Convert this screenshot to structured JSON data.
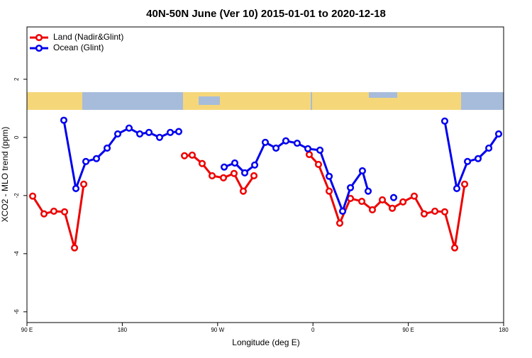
{
  "chart_data": {
    "type": "line",
    "title": "40N-50N June (Ver 10)   2015-01-01 to 2020-12-18",
    "x_label": "Longitude (deg E)",
    "y_label": "XCO2 - MLO trend (ppm)",
    "xlim": [
      90,
      540
    ],
    "xticks": [
      {
        "value": 90,
        "label": "90 E"
      },
      {
        "value": 180,
        "label": "180"
      },
      {
        "value": 270,
        "label": "90 W"
      },
      {
        "value": 360,
        "label": "0"
      },
      {
        "value": 450,
        "label": "90 E"
      },
      {
        "value": 540,
        "label": "180"
      }
    ],
    "ylim": [
      -6.37,
      3.8
    ],
    "yticks": [
      -6,
      -4,
      -2,
      0,
      2
    ],
    "legend": "top-left",
    "series": [
      {
        "name": "Land (Nadir&Glint)",
        "color": "#ee0000",
        "x": [
          95.4,
          106.1,
          115.4,
          125.5,
          134.9,
          143.6,
          null,
          238.7,
          246.0,
          255.4,
          264.8,
          275.5,
          285.5,
          294.2,
          304.3,
          null,
          356.5,
          365.2,
          375.3,
          385.3,
          395.4,
          406.1,
          416.1,
          425.5,
          434.9,
          445.0,
          455.6,
          465.0,
          475.1,
          484.4,
          493.8,
          503.2
        ],
        "values": [
          -2.02,
          -2.63,
          -2.54,
          -2.56,
          -3.8,
          -1.61,
          null,
          -0.63,
          -0.61,
          -0.9,
          -1.32,
          -1.39,
          -1.24,
          -1.85,
          -1.32,
          null,
          -0.59,
          -0.93,
          -1.85,
          -2.95,
          -2.1,
          -2.2,
          -2.49,
          -2.15,
          -2.44,
          -2.22,
          -2.02,
          -2.63,
          -2.54,
          -2.56,
          -3.8,
          -1.61
        ]
      },
      {
        "name": "Ocean (Glint)",
        "color": "#0000ee",
        "x": [
          124.8,
          136.2,
          145.6,
          155.6,
          165.7,
          175.7,
          186.4,
          196.5,
          205.2,
          215.2,
          225.3,
          233.3,
          null,
          276.2,
          286.2,
          295.6,
          305.0,
          315.0,
          325.1,
          334.4,
          345.1,
          355.2,
          366.6,
          375.3,
          388.0,
          395.4,
          406.7,
          412.1,
          null,
          436.2,
          null,
          484.4,
          495.8,
          505.9,
          515.9,
          526.0,
          535.3
        ],
        "values": [
          0.59,
          -1.76,
          -0.83,
          -0.73,
          -0.37,
          0.12,
          0.32,
          0.12,
          0.17,
          0.0,
          0.17,
          0.2,
          null,
          -1.02,
          -0.88,
          -1.22,
          -0.95,
          -0.17,
          -0.37,
          -0.12,
          -0.2,
          -0.39,
          -0.44,
          -1.34,
          -2.54,
          -1.73,
          -1.15,
          -1.85,
          null,
          -2.07,
          null,
          0.56,
          -1.76,
          -0.83,
          -0.73,
          -0.37,
          0.12
        ]
      }
    ]
  }
}
